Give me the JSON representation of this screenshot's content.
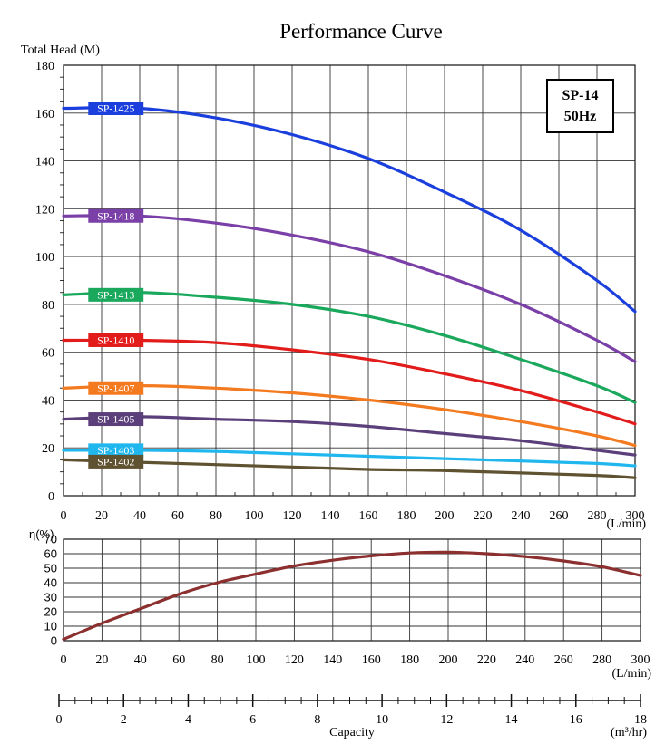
{
  "chart_data": [
    {
      "type": "line",
      "title": "Performance Curve",
      "ylabel": "Total Head (M)",
      "xunit": "(L/min)",
      "xlim": [
        0,
        300
      ],
      "ylim": [
        0,
        180
      ],
      "xticks": [
        0,
        20,
        40,
        60,
        80,
        100,
        120,
        140,
        160,
        180,
        200,
        220,
        240,
        260,
        280,
        300
      ],
      "yticks": [
        0,
        20,
        40,
        60,
        80,
        100,
        120,
        140,
        160,
        180
      ],
      "grid": true,
      "badge": {
        "model": "SP-14",
        "freq": "50Hz"
      },
      "series": [
        {
          "name": "SP-1425",
          "color": "#1a3fdc",
          "x": [
            0,
            40,
            80,
            120,
            160,
            200,
            240,
            280,
            300
          ],
          "y": [
            162,
            162,
            158,
            151,
            141,
            127,
            111,
            90,
            77
          ]
        },
        {
          "name": "SP-1418",
          "color": "#7b3fa8",
          "x": [
            0,
            40,
            80,
            120,
            160,
            200,
            240,
            280,
            300
          ],
          "y": [
            117,
            117,
            114,
            109,
            102,
            92,
            80,
            65,
            56
          ]
        },
        {
          "name": "SP-1413",
          "color": "#1aa85c",
          "x": [
            0,
            40,
            80,
            120,
            160,
            200,
            240,
            280,
            300
          ],
          "y": [
            84,
            85,
            83,
            80,
            75,
            67,
            57,
            46,
            39
          ]
        },
        {
          "name": "SP-1410",
          "color": "#e21b1b",
          "x": [
            0,
            40,
            80,
            120,
            160,
            200,
            240,
            280,
            300
          ],
          "y": [
            65,
            65,
            64,
            61,
            57,
            51,
            44,
            35,
            30
          ]
        },
        {
          "name": "SP-1407",
          "color": "#f47a20",
          "x": [
            0,
            40,
            80,
            120,
            160,
            200,
            240,
            280,
            300
          ],
          "y": [
            45,
            46,
            45,
            43,
            40,
            36,
            31,
            25,
            21
          ]
        },
        {
          "name": "SP-1405",
          "color": "#5b3f7a",
          "x": [
            0,
            40,
            80,
            120,
            160,
            200,
            240,
            280,
            300
          ],
          "y": [
            32,
            33,
            32,
            31,
            29,
            26,
            23,
            19,
            17
          ]
        },
        {
          "name": "SP-1403",
          "color": "#1fb7ee",
          "x": [
            0,
            40,
            80,
            120,
            160,
            200,
            240,
            280,
            300
          ],
          "y": [
            19,
            19,
            18.5,
            17.5,
            16.5,
            15.5,
            14.5,
            13.5,
            12.5
          ]
        },
        {
          "name": "SP-1402",
          "color": "#5f5230",
          "x": [
            0,
            40,
            80,
            120,
            160,
            200,
            240,
            280,
            300
          ],
          "y": [
            15,
            14,
            13,
            12,
            11,
            10.5,
            9.5,
            8.5,
            7.5
          ]
        }
      ]
    },
    {
      "type": "line",
      "ylabel": "η(%)",
      "xunit": "(L/min)",
      "xlim": [
        0,
        300
      ],
      "ylim": [
        0,
        70
      ],
      "xticks": [
        0,
        20,
        40,
        60,
        80,
        100,
        120,
        140,
        160,
        180,
        200,
        220,
        240,
        260,
        280,
        300
      ],
      "yticks": [
        0,
        10,
        20,
        30,
        40,
        50,
        60,
        70
      ],
      "grid": true,
      "series": [
        {
          "color": "#8b2f2f",
          "x": [
            0,
            20,
            40,
            60,
            80,
            100,
            120,
            140,
            160,
            180,
            200,
            220,
            240,
            260,
            280,
            300
          ],
          "y": [
            1,
            12,
            22,
            32,
            40,
            46,
            51.5,
            55.5,
            58.5,
            60.5,
            61,
            60,
            58,
            55,
            51,
            45
          ]
        }
      ]
    }
  ],
  "capacity_axis": {
    "xlabel": "Capacity",
    "unit": "(m³/hr)",
    "min": 0,
    "max": 18,
    "ticks": [
      0,
      2,
      4,
      6,
      8,
      10,
      12,
      14,
      16,
      18
    ]
  }
}
